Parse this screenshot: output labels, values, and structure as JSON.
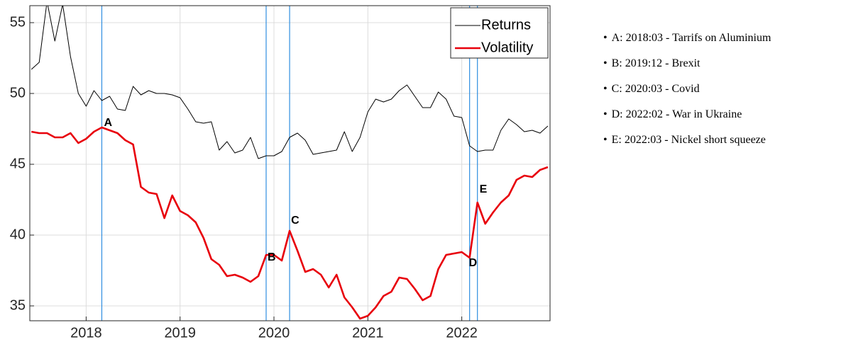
{
  "chart_data": {
    "type": "line",
    "x": [
      2017.4167,
      2017.5,
      2017.5833,
      2017.6667,
      2017.75,
      2017.8333,
      2017.9167,
      2018,
      2018.0833,
      2018.1667,
      2018.25,
      2018.3333,
      2018.4167,
      2018.5,
      2018.5833,
      2018.6667,
      2018.75,
      2018.8333,
      2018.9167,
      2019,
      2019.0833,
      2019.1667,
      2019.25,
      2019.3333,
      2019.4167,
      2019.5,
      2019.5833,
      2019.6667,
      2019.75,
      2019.8333,
      2019.9167,
      2020,
      2020.0833,
      2020.1667,
      2020.25,
      2020.3333,
      2020.4167,
      2020.5,
      2020.5833,
      2020.6667,
      2020.75,
      2020.8333,
      2020.9167,
      2021,
      2021.0833,
      2021.1667,
      2021.25,
      2021.3333,
      2021.4167,
      2021.5,
      2021.5833,
      2021.6667,
      2021.75,
      2021.8333,
      2021.9167,
      2022,
      2022.0833,
      2022.1667,
      2022.25,
      2022.3333,
      2022.4167,
      2022.5,
      2022.5833,
      2022.6667,
      2022.75,
      2022.8333,
      2022.9167
    ],
    "series": [
      {
        "name": "Returns",
        "color": "#000000",
        "width": 1,
        "values": [
          51.7,
          52.2,
          56.5,
          53.7,
          56.3,
          52.6,
          50.0,
          49.1,
          50.2,
          49.5,
          49.8,
          48.9,
          48.8,
          50.5,
          49.9,
          50.2,
          50.0,
          50.0,
          49.9,
          49.7,
          48.9,
          48.0,
          47.9,
          48.0,
          46.0,
          46.6,
          45.8,
          46.0,
          46.9,
          45.4,
          45.6,
          45.6,
          45.9,
          46.9,
          47.2,
          46.7,
          45.7,
          45.8,
          45.9,
          46.0,
          47.3,
          45.9,
          46.9,
          48.7,
          49.6,
          49.4,
          49.6,
          50.2,
          50.6,
          49.8,
          49.0,
          49.0,
          50.1,
          49.6,
          48.4,
          48.3,
          46.3,
          45.9,
          46.0,
          46.0,
          47.4,
          48.2,
          47.8,
          47.3,
          47.4,
          47.2,
          47.7
        ]
      },
      {
        "name": "Volatility",
        "color": "#e8000b",
        "width": 2.6,
        "values": [
          47.3,
          47.2,
          47.2,
          46.9,
          46.9,
          47.2,
          46.5,
          46.8,
          47.3,
          47.6,
          47.4,
          47.2,
          46.7,
          46.4,
          43.4,
          43.0,
          42.9,
          41.2,
          42.8,
          41.7,
          41.4,
          40.9,
          39.8,
          38.3,
          37.9,
          37.1,
          37.2,
          37.0,
          36.7,
          37.1,
          38.6,
          38.6,
          38.2,
          40.3,
          38.9,
          37.4,
          37.6,
          37.2,
          36.3,
          37.2,
          35.6,
          34.9,
          34.1,
          34.3,
          34.9,
          35.7,
          36.0,
          37.0,
          36.9,
          36.2,
          35.4,
          35.7,
          37.6,
          38.6,
          38.7,
          38.8,
          38.4,
          42.3,
          40.8,
          41.6,
          42.3,
          42.8,
          43.9,
          44.2,
          44.1,
          44.6,
          44.8
        ]
      }
    ],
    "xlim": [
      2017.4,
      2022.94
    ],
    "ylim": [
      33.95,
      56.2
    ],
    "xticks": [
      2018,
      2019,
      2020,
      2021,
      2022
    ],
    "yticks": [
      35,
      40,
      45,
      50,
      55
    ],
    "grid": true,
    "legend": "top-right",
    "events": [
      {
        "label": "A",
        "x": 2018.1667,
        "color": "#2f8ee0"
      },
      {
        "label": "B",
        "x": 2019.9167,
        "color": "#2f8ee0"
      },
      {
        "label": "C",
        "x": 2020.1667,
        "color": "#2f8ee0"
      },
      {
        "label": "D",
        "x": 2022.0833,
        "color": "#2f8ee0"
      },
      {
        "label": "E",
        "x": 2022.1667,
        "color": "#2f8ee0"
      }
    ],
    "notes": [
      "A: 2018:03 - Tarrifs on Aluminium",
      "B: 2019:12 - Brexit",
      "C: 2020:03 - Covid",
      "D: 2022:02 - War in Ukraine",
      "E: 2022:03 - Nickel short squeeze"
    ]
  }
}
